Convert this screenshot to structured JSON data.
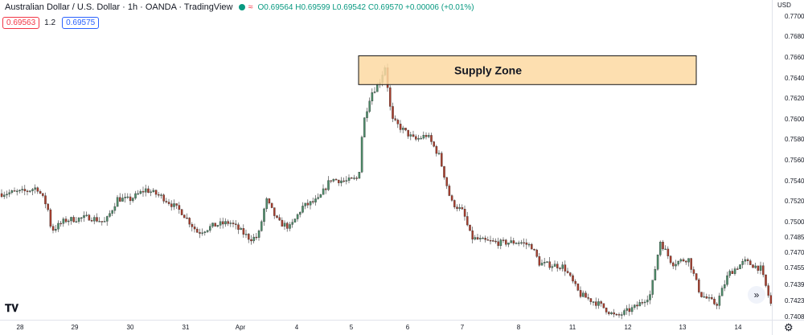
{
  "legend": {
    "symbol": "Australian Dollar / U.S. Dollar · 1h · OANDA · TradingView",
    "ohlc": "O0.69564 H0.69599 L0.69542 C0.69570 +0.00006 (+0.01%)",
    "sell_price": "0.69563",
    "step": "1.2",
    "buy_price": "0.69575",
    "icons": [
      "status-dot-icon",
      "waves-icon"
    ]
  },
  "annotation": {
    "label": "Supply Zone",
    "top_price": 0.7662,
    "bottom_price": 0.7634,
    "fill": "#fdd9a2",
    "border": "#141414"
  },
  "price_axis": {
    "currency": "USD",
    "ticks": [
      "0.77000",
      "0.76800",
      "0.76600",
      "0.76400",
      "0.76200",
      "0.76000",
      "0.75800",
      "0.75600",
      "0.75400",
      "0.75200",
      "0.75000",
      "0.74850",
      "0.74700",
      "0.74550",
      "0.74390",
      "0.74230",
      "0.74080"
    ]
  },
  "time_axis": {
    "labels": [
      "28",
      "29",
      "30",
      "31",
      "Apr",
      "4",
      "5",
      "6",
      "7",
      "8",
      "11",
      "12",
      "13",
      "14"
    ]
  },
  "chart_data": {
    "type": "candlestick",
    "up_color": "#4e8c6a",
    "down_color": "#a83f2e",
    "ylim": [
      0.741,
      0.771
    ],
    "anchors": [
      [
        0,
        0.7528
      ],
      [
        30,
        0.753
      ],
      [
        45,
        0.7534
      ],
      [
        58,
        0.7515
      ],
      [
        63,
        0.7492
      ],
      [
        80,
        0.7502
      ],
      [
        110,
        0.7505
      ],
      [
        130,
        0.75
      ],
      [
        145,
        0.7523
      ],
      [
        160,
        0.7522
      ],
      [
        180,
        0.7532
      ],
      [
        200,
        0.7525
      ],
      [
        225,
        0.751
      ],
      [
        245,
        0.749
      ],
      [
        265,
        0.7497
      ],
      [
        285,
        0.75
      ],
      [
        310,
        0.7484
      ],
      [
        320,
        0.7486
      ],
      [
        330,
        0.7522
      ],
      [
        345,
        0.75
      ],
      [
        360,
        0.7495
      ],
      [
        375,
        0.7515
      ],
      [
        395,
        0.7522
      ],
      [
        410,
        0.7542
      ],
      [
        430,
        0.754
      ],
      [
        445,
        0.7543
      ],
      [
        450,
        0.7594
      ],
      [
        460,
        0.7625
      ],
      [
        470,
        0.7635
      ],
      [
        478,
        0.7652
      ],
      [
        486,
        0.76
      ],
      [
        500,
        0.759
      ],
      [
        515,
        0.758
      ],
      [
        530,
        0.7585
      ],
      [
        545,
        0.7565
      ],
      [
        560,
        0.752
      ],
      [
        575,
        0.751
      ],
      [
        585,
        0.7485
      ],
      [
        600,
        0.7482
      ],
      [
        620,
        0.748
      ],
      [
        645,
        0.7481
      ],
      [
        660,
        0.7477
      ],
      [
        670,
        0.746
      ],
      [
        690,
        0.7458
      ],
      [
        700,
        0.7457
      ],
      [
        720,
        0.743
      ],
      [
        745,
        0.742
      ],
      [
        765,
        0.7408
      ],
      [
        790,
        0.7418
      ],
      [
        808,
        0.743
      ],
      [
        820,
        0.7482
      ],
      [
        835,
        0.746
      ],
      [
        855,
        0.7465
      ],
      [
        870,
        0.743
      ],
      [
        890,
        0.742
      ],
      [
        905,
        0.745
      ],
      [
        925,
        0.7462
      ],
      [
        945,
        0.7455
      ],
      [
        958,
        0.742
      ]
    ]
  }
}
